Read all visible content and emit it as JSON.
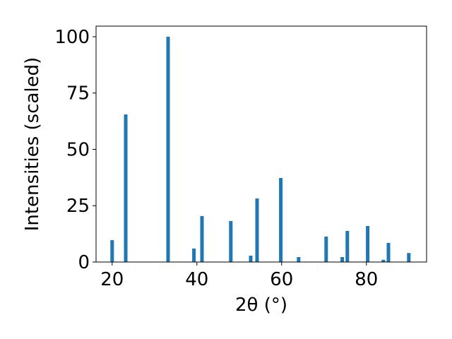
{
  "chart_data": {
    "type": "bar",
    "x_label": "2θ (°)",
    "y_label": "Intensities (scaled)",
    "x": [
      20,
      23.2,
      33.2,
      39.3,
      41.2,
      48,
      52.7,
      54.2,
      59.8,
      64,
      70.5,
      74.3,
      75.5,
      80.3,
      84,
      85.2,
      90
    ],
    "values": [
      9.7,
      65.5,
      100,
      6,
      20.4,
      18.2,
      2.8,
      28.2,
      37.3,
      2.2,
      11.3,
      2.2,
      13.8,
      16,
      1,
      8.5,
      4
    ],
    "color": "#1f77b4",
    "xlim": [
      16.2,
      94.2
    ],
    "ylim": [
      0,
      104.7
    ],
    "xticks": [
      20,
      40,
      60,
      80
    ],
    "yticks": [
      0,
      25,
      50,
      75,
      100
    ]
  }
}
